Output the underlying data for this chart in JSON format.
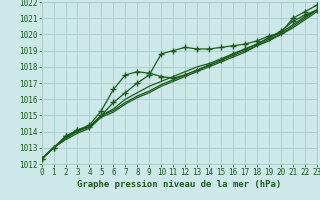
{
  "title": "Graphe pression niveau de la mer (hPa)",
  "background_color": "#cce8e8",
  "grid_color": "#aacccc",
  "line_color": "#1a5c1a",
  "xlim": [
    0,
    23
  ],
  "ylim": [
    1012,
    1022
  ],
  "xticks": [
    0,
    1,
    2,
    3,
    4,
    5,
    6,
    7,
    8,
    9,
    10,
    11,
    12,
    13,
    14,
    15,
    16,
    17,
    18,
    19,
    20,
    21,
    22,
    23
  ],
  "yticks": [
    1012,
    1013,
    1014,
    1015,
    1016,
    1017,
    1018,
    1019,
    1020,
    1021,
    1022
  ],
  "series": [
    {
      "y": [
        1012.3,
        1013.0,
        1013.7,
        1014.1,
        1014.3,
        1015.0,
        1015.8,
        1016.4,
        1017.0,
        1017.5,
        1018.8,
        1019.0,
        1019.2,
        1019.1,
        1019.1,
        1019.2,
        1019.3,
        1019.4,
        1019.6,
        1019.9,
        1020.1,
        1021.0,
        1021.4,
        1021.8
      ],
      "marker": "+",
      "lw": 0.9,
      "ms": 4,
      "zorder": 4
    },
    {
      "y": [
        1012.3,
        1013.0,
        1013.7,
        1014.1,
        1014.4,
        1015.3,
        1016.6,
        1017.5,
        1017.7,
        1017.6,
        1017.4,
        1017.3,
        1017.5,
        1017.8,
        1018.1,
        1018.4,
        1018.8,
        1019.1,
        1019.4,
        1019.8,
        1020.2,
        1020.8,
        1021.2,
        1021.5
      ],
      "marker": "+",
      "lw": 0.9,
      "ms": 4,
      "zorder": 4
    },
    {
      "y": [
        1012.3,
        1013.0,
        1013.6,
        1014.1,
        1014.3,
        1015.0,
        1015.4,
        1016.0,
        1016.4,
        1016.8,
        1017.1,
        1017.4,
        1017.7,
        1018.0,
        1018.2,
        1018.5,
        1018.8,
        1019.1,
        1019.4,
        1019.8,
        1020.1,
        1020.6,
        1021.1,
        1021.5
      ],
      "marker": null,
      "lw": 0.9,
      "ms": 0,
      "zorder": 3
    },
    {
      "y": [
        1012.3,
        1013.0,
        1013.6,
        1014.0,
        1014.3,
        1015.0,
        1015.3,
        1015.8,
        1016.2,
        1016.5,
        1016.9,
        1017.2,
        1017.5,
        1017.8,
        1018.1,
        1018.4,
        1018.7,
        1019.0,
        1019.3,
        1019.7,
        1020.0,
        1020.5,
        1021.0,
        1021.5
      ],
      "marker": null,
      "lw": 0.9,
      "ms": 0,
      "zorder": 3
    },
    {
      "y": [
        1012.3,
        1013.0,
        1013.5,
        1013.9,
        1014.2,
        1014.9,
        1015.2,
        1015.7,
        1016.1,
        1016.4,
        1016.8,
        1017.1,
        1017.4,
        1017.7,
        1018.0,
        1018.3,
        1018.6,
        1018.9,
        1019.3,
        1019.6,
        1020.0,
        1020.4,
        1020.9,
        1021.4
      ],
      "marker": null,
      "lw": 0.9,
      "ms": 0,
      "zorder": 3
    }
  ],
  "font_size": 5.5,
  "title_font_size": 6.5,
  "title_bold": true
}
